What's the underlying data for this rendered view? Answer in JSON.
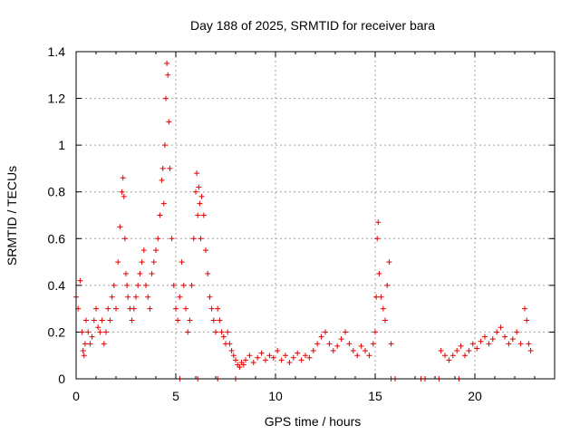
{
  "chart_data": {
    "type": "scatter",
    "title": "Day 188 of 2025, SRMTID for receiver bara",
    "xlabel": "GPS time / hours",
    "ylabel": "SRMTID / TECUs",
    "xlim": [
      0,
      24
    ],
    "ylim": [
      0,
      1.4
    ],
    "xticks": [
      0,
      5,
      10,
      15,
      20
    ],
    "xtick_labels": [
      "0",
      "5",
      "10",
      "15",
      "20"
    ],
    "yticks": [
      0,
      0.2,
      0.4,
      0.6,
      0.8,
      1,
      1.2,
      1.4
    ],
    "ytick_labels": [
      "0",
      "0.2",
      "0.4",
      "0.6",
      "0.8",
      "1",
      "1.2",
      "1.4"
    ],
    "grid": true,
    "marker": "+",
    "series": [
      {
        "name": "SRMTID",
        "color": "#e00000",
        "x": [
          0.0,
          0.1,
          0.2,
          0.3,
          0.35,
          0.4,
          0.45,
          0.5,
          0.6,
          0.7,
          0.8,
          0.9,
          1.0,
          1.1,
          1.2,
          1.3,
          1.4,
          1.5,
          1.6,
          1.7,
          1.8,
          1.9,
          2.0,
          2.1,
          2.2,
          2.3,
          2.35,
          2.4,
          2.45,
          2.5,
          2.55,
          2.6,
          2.7,
          2.8,
          2.9,
          3.0,
          3.1,
          3.2,
          3.3,
          3.4,
          3.5,
          3.6,
          3.7,
          3.8,
          3.9,
          4.0,
          4.1,
          4.2,
          4.3,
          4.35,
          4.4,
          4.45,
          4.5,
          4.55,
          4.6,
          4.65,
          4.7,
          4.8,
          4.9,
          5.0,
          5.1,
          5.2,
          5.3,
          5.4,
          5.5,
          5.6,
          5.7,
          5.8,
          5.9,
          6.0,
          6.05,
          6.1,
          6.15,
          6.2,
          6.25,
          6.3,
          6.4,
          6.5,
          6.6,
          6.7,
          6.8,
          6.9,
          7.0,
          7.1,
          7.2,
          7.3,
          7.4,
          7.5,
          7.6,
          7.7,
          7.8,
          7.9,
          8.0,
          8.1,
          8.2,
          8.3,
          8.4,
          8.5,
          8.7,
          8.9,
          9.1,
          9.3,
          9.5,
          9.7,
          9.9,
          10.1,
          10.3,
          10.5,
          10.7,
          10.9,
          11.1,
          11.3,
          11.5,
          11.7,
          11.9,
          12.1,
          12.3,
          12.5,
          12.7,
          12.9,
          13.1,
          13.3,
          13.5,
          13.7,
          13.9,
          14.1,
          14.3,
          14.5,
          14.7,
          14.9,
          15.0,
          15.05,
          15.1,
          15.15,
          15.2,
          15.3,
          15.4,
          15.5,
          15.6,
          15.7,
          15.8,
          18.3,
          18.5,
          18.7,
          18.9,
          19.1,
          19.3,
          19.5,
          19.7,
          19.9,
          20.1,
          20.3,
          20.5,
          20.7,
          20.9,
          21.1,
          21.3,
          21.5,
          21.7,
          21.9,
          22.1,
          22.3,
          22.5,
          22.6,
          22.7,
          22.8,
          5.2,
          6.1,
          7.1,
          8.0,
          15.8,
          16.0,
          17.3,
          17.5,
          18.2,
          19.2
        ],
        "y": [
          0.35,
          0.3,
          0.42,
          0.2,
          0.12,
          0.1,
          0.15,
          0.25,
          0.2,
          0.15,
          0.18,
          0.25,
          0.3,
          0.22,
          0.2,
          0.25,
          0.15,
          0.2,
          0.3,
          0.25,
          0.35,
          0.4,
          0.3,
          0.5,
          0.65,
          0.8,
          0.86,
          0.78,
          0.6,
          0.45,
          0.4,
          0.35,
          0.3,
          0.25,
          0.3,
          0.35,
          0.4,
          0.45,
          0.5,
          0.55,
          0.4,
          0.35,
          0.3,
          0.45,
          0.5,
          0.55,
          0.6,
          0.7,
          0.85,
          0.9,
          0.75,
          1.0,
          1.2,
          1.35,
          1.3,
          1.1,
          0.9,
          0.6,
          0.4,
          0.3,
          0.25,
          0.35,
          0.5,
          0.4,
          0.3,
          0.2,
          0.25,
          0.4,
          0.6,
          0.8,
          0.88,
          0.7,
          0.82,
          0.75,
          0.6,
          0.78,
          0.7,
          0.55,
          0.45,
          0.35,
          0.3,
          0.25,
          0.2,
          0.3,
          0.25,
          0.2,
          0.18,
          0.15,
          0.2,
          0.15,
          0.12,
          0.1,
          0.08,
          0.06,
          0.05,
          0.07,
          0.06,
          0.08,
          0.1,
          0.07,
          0.09,
          0.11,
          0.08,
          0.1,
          0.09,
          0.12,
          0.08,
          0.1,
          0.07,
          0.09,
          0.11,
          0.08,
          0.1,
          0.09,
          0.12,
          0.15,
          0.18,
          0.2,
          0.15,
          0.12,
          0.14,
          0.17,
          0.2,
          0.15,
          0.12,
          0.1,
          0.14,
          0.12,
          0.1,
          0.15,
          0.2,
          0.35,
          0.6,
          0.67,
          0.45,
          0.35,
          0.3,
          0.25,
          0.4,
          0.5,
          0.15,
          0.12,
          0.1,
          0.08,
          0.1,
          0.12,
          0.14,
          0.1,
          0.12,
          0.15,
          0.13,
          0.16,
          0.18,
          0.15,
          0.17,
          0.2,
          0.22,
          0.18,
          0.15,
          0.17,
          0.2,
          0.15,
          0.3,
          0.25,
          0.15,
          0.12,
          0.0,
          0.0,
          0.0,
          0.0,
          0.0,
          0.0,
          0.0,
          0.0,
          0.0,
          0.0
        ]
      }
    ]
  }
}
